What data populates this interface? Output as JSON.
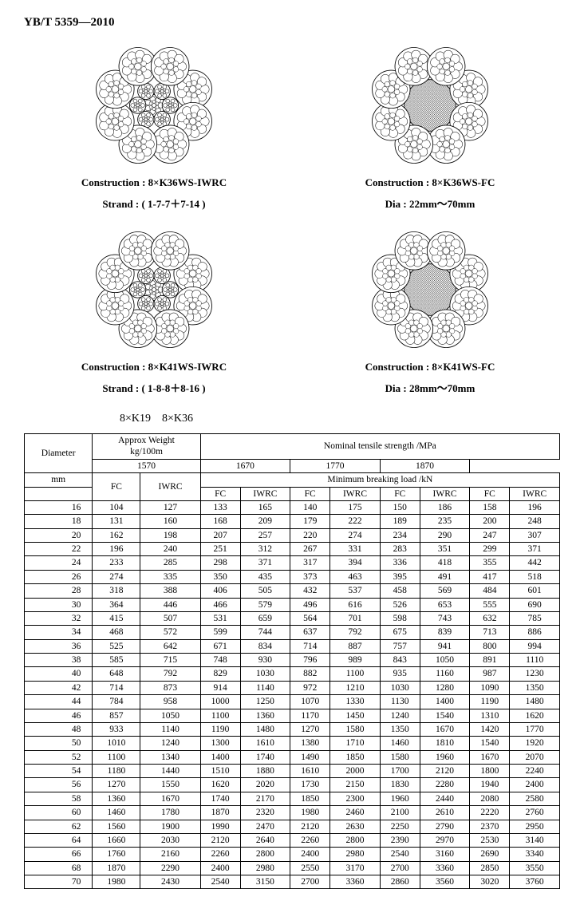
{
  "doc_id": "YB/T 5359—2010",
  "diagrams": {
    "top_left": {
      "label": "Construction : 8×K36WS-IWRC"
    },
    "top_right": {
      "label": "Construction : 8×K36WS-FC"
    },
    "top_strand": "Strand : ( 1-7-7＋7-14 )",
    "top_dia": "Dia : 22mm～70mm",
    "bot_left": {
      "label": "Construction : 8×K41WS-IWRC"
    },
    "bot_right": {
      "label": "Construction : 8×K41WS-FC"
    },
    "bot_strand": "Strand : ( 1-8-8＋8-16 )",
    "bot_dia": "Dia : 28mm～70mm",
    "class_line": "8×K19　8×K36"
  },
  "table": {
    "header": {
      "diameter": "Diameter",
      "diameter_unit": "mm",
      "approx_weight": "Approx Weight",
      "weight_unit": "kg/100m",
      "nominal": "Nominal tensile strength /MPa",
      "minbreak": "Minimum breaking load /kN",
      "grades": [
        "1570",
        "1670",
        "1770",
        "1870"
      ],
      "cols": [
        "FC",
        "IWRC"
      ]
    },
    "rows": [
      [
        16,
        104,
        127,
        133,
        165,
        140,
        175,
        150,
        186,
        158,
        196
      ],
      [
        18,
        131,
        160,
        168,
        209,
        179,
        222,
        189,
        235,
        200,
        248
      ],
      [
        20,
        162,
        198,
        207,
        257,
        220,
        274,
        234,
        290,
        247,
        307
      ],
      [
        22,
        196,
        240,
        251,
        312,
        267,
        331,
        283,
        351,
        299,
        371
      ],
      [
        24,
        233,
        285,
        298,
        371,
        317,
        394,
        336,
        418,
        355,
        442
      ],
      [
        26,
        274,
        335,
        350,
        435,
        373,
        463,
        395,
        491,
        417,
        518
      ],
      [
        28,
        318,
        388,
        406,
        505,
        432,
        537,
        458,
        569,
        484,
        601
      ],
      [
        30,
        364,
        446,
        466,
        579,
        496,
        616,
        526,
        653,
        555,
        690
      ],
      [
        32,
        415,
        507,
        531,
        659,
        564,
        701,
        598,
        743,
        632,
        785
      ],
      [
        34,
        468,
        572,
        599,
        744,
        637,
        792,
        675,
        839,
        713,
        886
      ],
      [
        36,
        525,
        642,
        671,
        834,
        714,
        887,
        757,
        941,
        800,
        994
      ],
      [
        38,
        585,
        715,
        748,
        930,
        796,
        989,
        843,
        1050,
        891,
        1110
      ],
      [
        40,
        648,
        792,
        829,
        1030,
        882,
        1100,
        935,
        1160,
        987,
        1230
      ],
      [
        42,
        714,
        873,
        914,
        1140,
        972,
        1210,
        1030,
        1280,
        1090,
        1350
      ],
      [
        44,
        784,
        958,
        1000,
        1250,
        1070,
        1330,
        1130,
        1400,
        1190,
        1480
      ],
      [
        46,
        857,
        1050,
        1100,
        1360,
        1170,
        1450,
        1240,
        1540,
        1310,
        1620
      ],
      [
        48,
        933,
        1140,
        1190,
        1480,
        1270,
        1580,
        1350,
        1670,
        1420,
        1770
      ],
      [
        50,
        1010,
        1240,
        1300,
        1610,
        1380,
        1710,
        1460,
        1810,
        1540,
        1920
      ],
      [
        52,
        1100,
        1340,
        1400,
        1740,
        1490,
        1850,
        1580,
        1960,
        1670,
        2070
      ],
      [
        54,
        1180,
        1440,
        1510,
        1880,
        1610,
        2000,
        1700,
        2120,
        1800,
        2240
      ],
      [
        56,
        1270,
        1550,
        1620,
        2020,
        1730,
        2150,
        1830,
        2280,
        1940,
        2400
      ],
      [
        58,
        1360,
        1670,
        1740,
        2170,
        1850,
        2300,
        1960,
        2440,
        2080,
        2580
      ],
      [
        60,
        1460,
        1780,
        1870,
        2320,
        1980,
        2460,
        2100,
        2610,
        2220,
        2760
      ],
      [
        62,
        1560,
        1900,
        1990,
        2470,
        2120,
        2630,
        2250,
        2790,
        2370,
        2950
      ],
      [
        64,
        1660,
        2030,
        2120,
        2640,
        2260,
        2800,
        2390,
        2970,
        2530,
        3140
      ],
      [
        66,
        1760,
        2160,
        2260,
        2800,
        2400,
        2980,
        2540,
        3160,
        2690,
        3340
      ],
      [
        68,
        1870,
        2290,
        2400,
        2980,
        2550,
        3170,
        2700,
        3360,
        2850,
        3550
      ],
      [
        70,
        1980,
        2430,
        2540,
        3150,
        2700,
        3360,
        2860,
        3560,
        3020,
        3760
      ]
    ]
  }
}
